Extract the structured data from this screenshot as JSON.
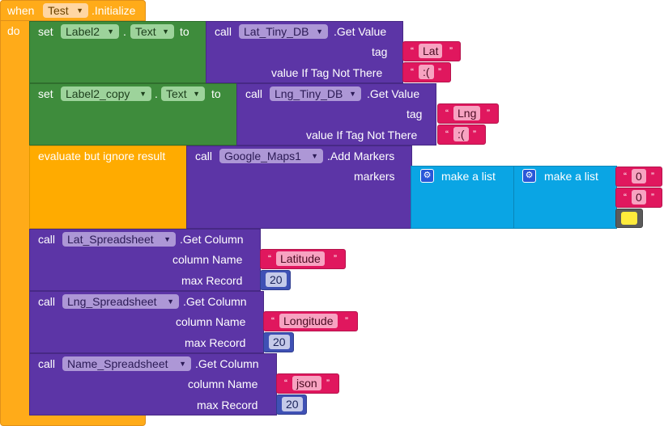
{
  "event": {
    "when_label": "when",
    "component": "Test",
    "event_name": ".Initialize",
    "do_label": "do"
  },
  "set1": {
    "set_label": "set",
    "component": "Label2",
    "dot": ".",
    "property": "Text",
    "to_label": "to",
    "call_label": "call",
    "call_component": "Lat_Tiny_DB",
    "method": ".Get Value",
    "tag_label": "tag",
    "tag_value": "Lat",
    "default_label": "value If Tag Not There",
    "default_value": ":("
  },
  "set2": {
    "set_label": "set",
    "component": "Label2_copy",
    "dot": ".",
    "property": "Text",
    "to_label": "to",
    "call_label": "call",
    "call_component": "Lng_Tiny_DB",
    "method": ".Get Value",
    "tag_label": "tag",
    "tag_value": "Lng",
    "default_label": "value If Tag Not There",
    "default_value": ":("
  },
  "evaluate": {
    "label": "evaluate but ignore result",
    "call_label": "call",
    "call_component": "Google_Maps1",
    "method": ".Add Markers",
    "markers_label": "markers",
    "make_list_outer": "make a list",
    "make_list_inner": "make a list",
    "item1": "0",
    "item2": "0",
    "swatch_color": "#FFEB3B"
  },
  "getcols": [
    {
      "call_label": "call",
      "component": "Lat_Spreadsheet",
      "method": ".Get Column",
      "column_label": "column Name",
      "column_value": "Latitude",
      "max_label": "max Record",
      "max_value": "20"
    },
    {
      "call_label": "call",
      "component": "Lng_Spreadsheet",
      "method": ".Get Column",
      "column_label": "column Name",
      "column_value": "Longitude",
      "max_label": "max Record",
      "max_value": "20"
    },
    {
      "call_label": "call",
      "component": "Name_Spreadsheet",
      "method": ".Get Column",
      "column_label": "column Name",
      "column_value": "json",
      "max_label": "max Record",
      "max_value": "20"
    }
  ],
  "icons": {
    "dropdown": "triangle-down-icon",
    "mutator": "gear-icon"
  },
  "colors": {
    "event": "#FFAB19",
    "green": "#3E8C3C",
    "purple": "#5C35A6",
    "text": "#E0175E",
    "math": "#3F51B5",
    "list": "#0AA5E4"
  }
}
